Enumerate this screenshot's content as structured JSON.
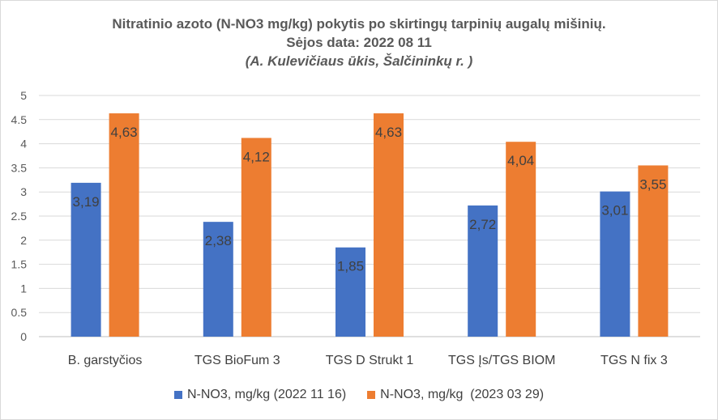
{
  "chart_data": {
    "type": "bar",
    "title": "Nitratinio azoto (N-NO3 mg/kg) pokytis po skirtingų tarpinių augalų mišinių.",
    "subtitle": "Sėjos data: 2022 08 11",
    "subtitle2": "(A. Kulevičiaus ūkis, Šalčininkų r. )",
    "categories": [
      "B. garstyčios",
      "TGS BioFum 3",
      "TGS D Strukt 1",
      "TGS Įs/TGS BIOM",
      "TGS N fix 3"
    ],
    "series": [
      {
        "name": "N-NO3, mg/kg (2022 11 16)",
        "color": "#4472c4",
        "values": [
          3.19,
          2.38,
          1.85,
          2.72,
          3.01
        ],
        "labels": [
          "3,19",
          "2,38",
          "1,85",
          "2,72",
          "3,01"
        ]
      },
      {
        "name": "N-NO3, mg/kg  (2023 03 29)",
        "color": "#ed7d31",
        "values": [
          4.63,
          4.12,
          4.63,
          4.04,
          3.55
        ],
        "labels": [
          "4,63",
          "4,12",
          "4,63",
          "4,04",
          "3,55"
        ]
      }
    ],
    "yticks": [
      "0",
      "0.5",
      "1",
      "1.5",
      "2",
      "2.5",
      "3",
      "3.5",
      "4",
      "4.5",
      "5"
    ],
    "ylim": [
      0,
      5
    ],
    "grid": true,
    "legend_position": "bottom"
  }
}
